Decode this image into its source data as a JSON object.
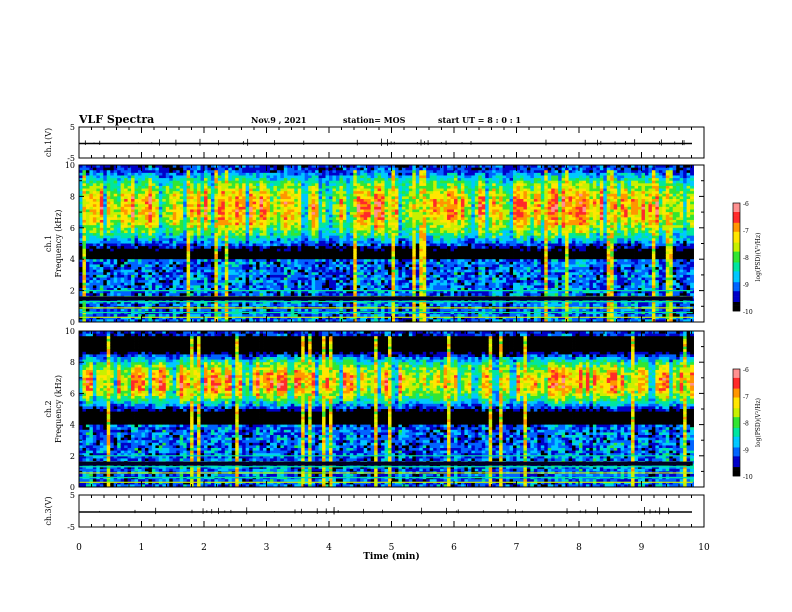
{
  "header": {
    "title": "VLF Spectra",
    "date": "Nov.9 , 2021",
    "station": "station= MOS",
    "start_ut": "start  UT =  8 : 0  : 1"
  },
  "chart_data": [
    {
      "type": "line",
      "panel": "ch1-waveform",
      "ylabel": "ch.1(V)",
      "ylim": [
        -5,
        5
      ],
      "yticks": [
        "5",
        "-5"
      ],
      "xlim": [
        0,
        10
      ]
    },
    {
      "type": "heatmap",
      "panel": "ch1-spectrogram",
      "ylabel": "ch.1\nFrequency (kHz)",
      "ylim": [
        0,
        10
      ],
      "yticks": [
        "0",
        "2",
        "4",
        "6",
        "8",
        "10"
      ],
      "xlim": [
        0,
        10
      ],
      "intense_band_khz": [
        5.5,
        9.0
      ],
      "colorbar": {
        "label": "log(PSD)(V²/Hz)",
        "ticks": [
          "-6",
          "-7",
          "-8",
          "-9",
          "-10"
        ],
        "range": [
          -10,
          -6
        ]
      }
    },
    {
      "type": "heatmap",
      "panel": "ch2-spectrogram",
      "ylabel": "ch.2\nFrequency (kHz)",
      "ylim": [
        0,
        10
      ],
      "yticks": [
        "0",
        "2",
        "4",
        "6",
        "8",
        "10"
      ],
      "xlim": [
        0,
        10
      ],
      "intense_band_khz": [
        5.5,
        8.0
      ],
      "colorbar": {
        "label": "log(PSD)(V²/Hz)",
        "ticks": [
          "-6",
          "-7",
          "-8",
          "-9",
          "-10"
        ],
        "range": [
          -10,
          -6
        ]
      }
    },
    {
      "type": "line",
      "panel": "ch3-waveform",
      "ylabel": "ch.3(V)",
      "ylim": [
        -5,
        5
      ],
      "yticks": [
        "5",
        "-5"
      ],
      "xlim": [
        0,
        10
      ],
      "xlabel": "Time (min)",
      "xticks": [
        "0",
        "1",
        "2",
        "3",
        "4",
        "5",
        "6",
        "7",
        "8",
        "9",
        "10"
      ]
    }
  ],
  "colors": {
    "colormap": [
      "#000000",
      "#0000c8",
      "#0064ff",
      "#00c8ff",
      "#00e6a0",
      "#32e632",
      "#c8f000",
      "#ffe600",
      "#ff9600",
      "#ff2a2a",
      "#ff9090",
      "#ffffff"
    ]
  }
}
